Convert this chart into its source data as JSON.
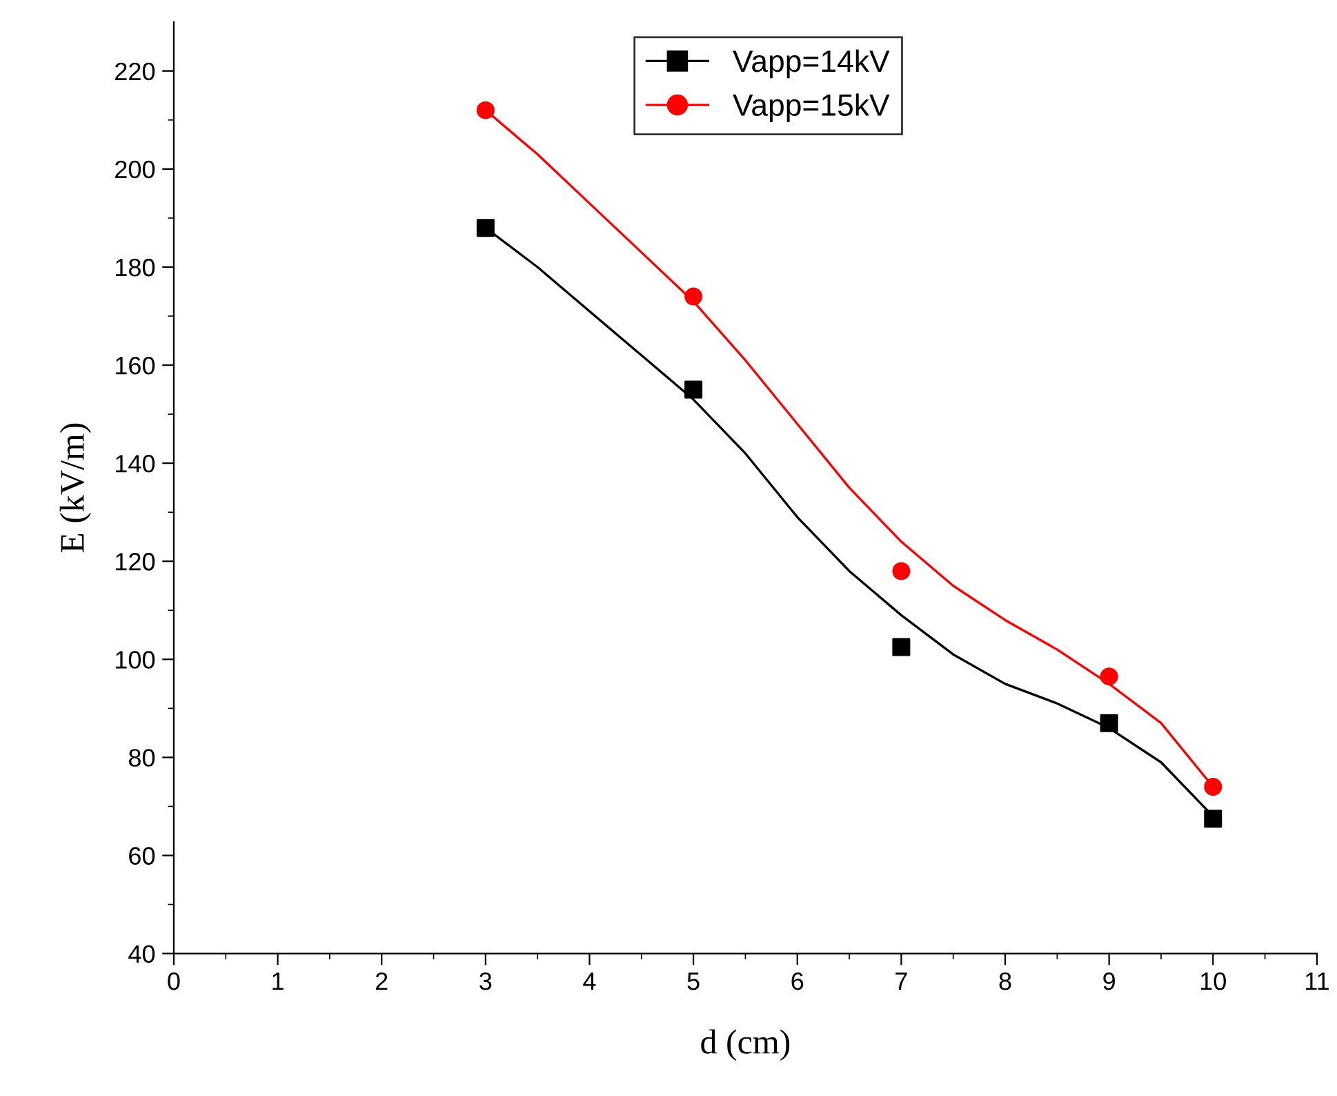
{
  "chart_data": {
    "type": "scatter",
    "xlabel": "d (cm)",
    "ylabel": "E (kV/m)",
    "xlim": [
      0,
      11
    ],
    "xticks": [
      0,
      1,
      2,
      3,
      4,
      5,
      6,
      7,
      8,
      9,
      10,
      11
    ],
    "ylim": [
      40,
      230
    ],
    "yticks": [
      40,
      60,
      80,
      100,
      120,
      140,
      160,
      180,
      200,
      220
    ],
    "grid": false,
    "legend": "top",
    "series": [
      {
        "name": "Vapp=14kV",
        "color": "#000000",
        "marker": "square",
        "x": [
          3,
          5,
          7,
          9,
          10
        ],
        "values": [
          188,
          155,
          102.5,
          87,
          67.5
        ]
      },
      {
        "name": "Vapp=15kV",
        "color": "#ff0000",
        "marker": "circle",
        "x": [
          3,
          5,
          7,
          9,
          10
        ],
        "values": [
          212,
          174,
          118,
          96.5,
          74
        ]
      },
      {
        "type": "line",
        "color": "#000000",
        "marker": "none",
        "x": [
          3,
          3.5,
          4,
          4.5,
          5,
          5.5,
          6,
          6.5,
          7,
          7.5,
          8,
          8.5,
          9,
          9.5,
          10
        ],
        "values": [
          188,
          180,
          171,
          162,
          153,
          142,
          129,
          118,
          109,
          101,
          95,
          91,
          86,
          79,
          68
        ]
      },
      {
        "type": "line",
        "color": "#ff0000",
        "marker": "none",
        "x": [
          3,
          3.5,
          4,
          4.5,
          5,
          5.5,
          6,
          6.5,
          7,
          7.5,
          8,
          8.5,
          9,
          9.5,
          10
        ],
        "values": [
          212,
          203,
          193,
          183,
          173,
          161,
          148,
          135,
          124,
          115,
          108,
          102,
          95,
          87,
          74
        ]
      }
    ]
  }
}
